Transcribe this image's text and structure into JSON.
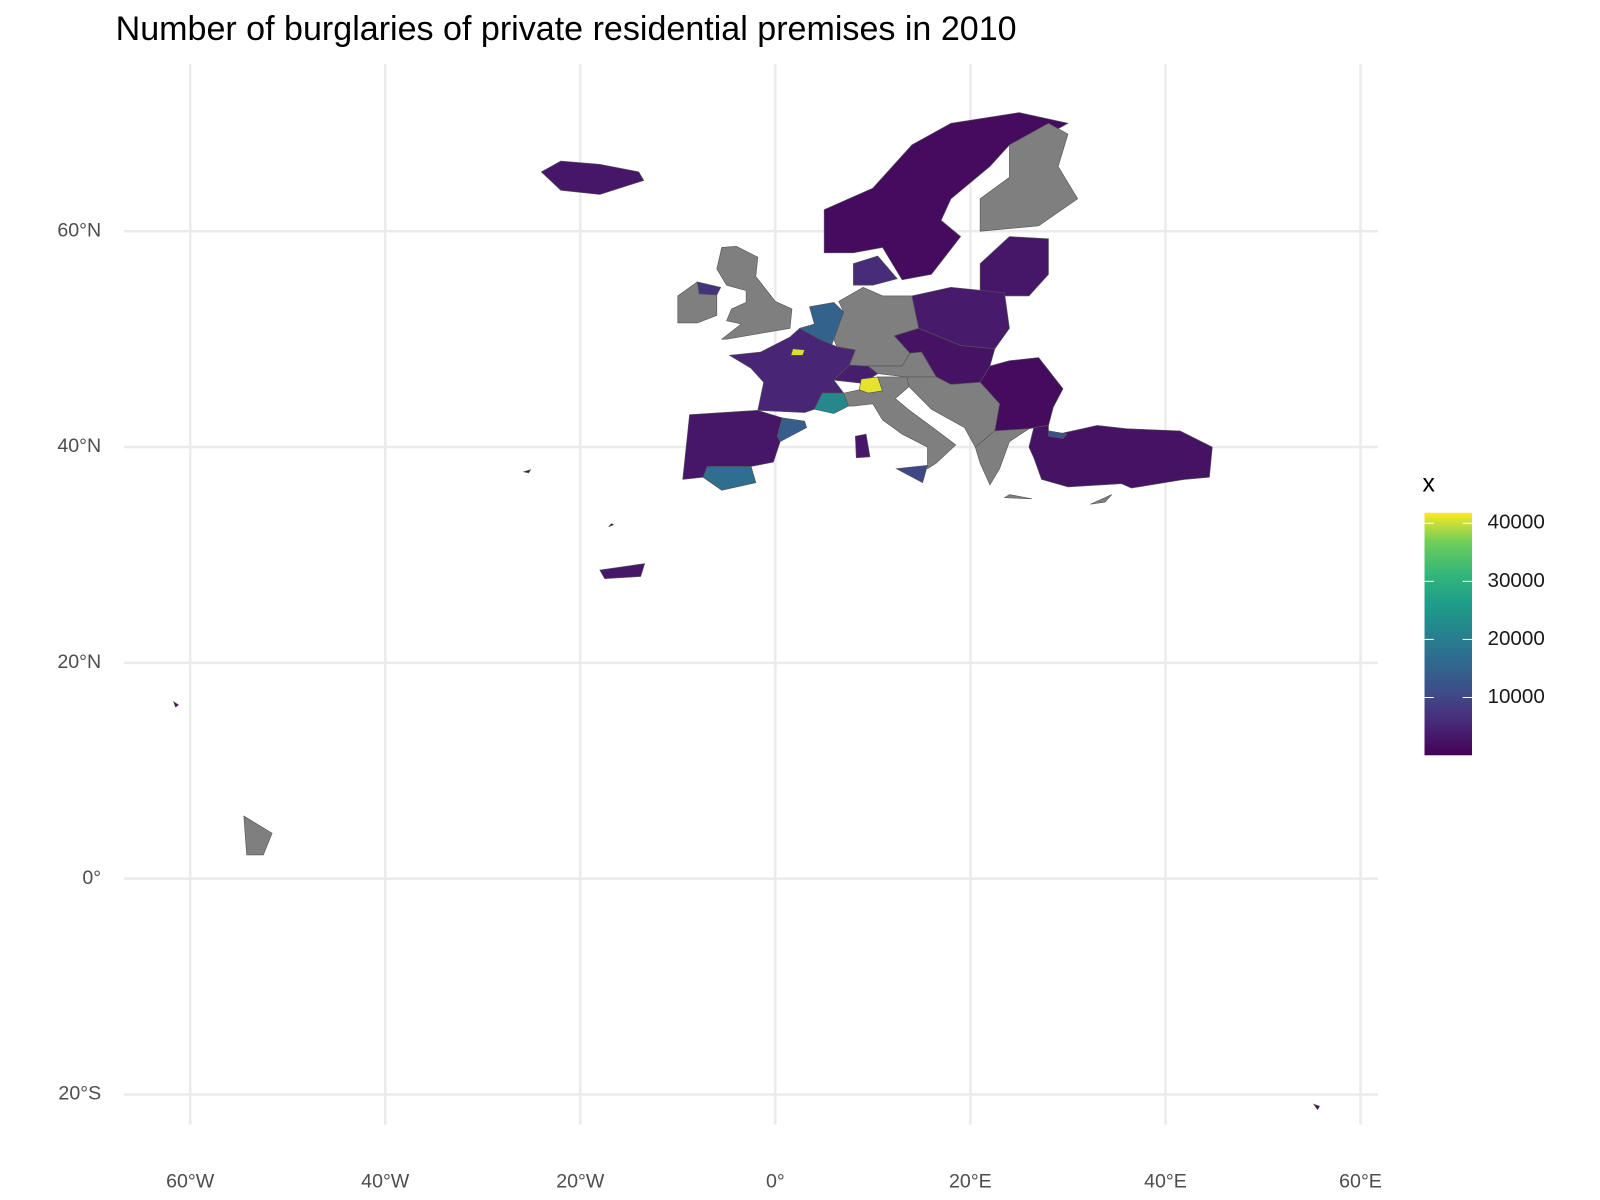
{
  "chart_data": {
    "type": "choropleth",
    "title": "Number of burglaries of private residential premises in 2010",
    "xlim": [
      -66.8,
      61.8
    ],
    "ylim": [
      -22.8,
      75.5
    ],
    "xticks": [
      {
        "value": -60,
        "label": "60°W"
      },
      {
        "value": -40,
        "label": "40°W"
      },
      {
        "value": -20,
        "label": "20°W"
      },
      {
        "value": 0,
        "label": "0°"
      },
      {
        "value": 20,
        "label": "20°E"
      },
      {
        "value": 40,
        "label": "40°E"
      },
      {
        "value": 60,
        "label": "60°E"
      }
    ],
    "yticks": [
      {
        "value": -20,
        "label": "20°S"
      },
      {
        "value": 0,
        "label": "0°"
      },
      {
        "value": 20,
        "label": "20°N"
      },
      {
        "value": 40,
        "label": "40°N"
      },
      {
        "value": 60,
        "label": "60°N"
      }
    ],
    "grid": true,
    "legend_title": "x",
    "palette": "viridis",
    "na_color": "#7f7f7f",
    "color_lim": [
      50,
      41800
    ],
    "color_ticks": [
      10000,
      20000,
      30000,
      40000
    ],
    "values": [
      3000,
      1500,
      null,
      3000,
      6000,
      null,
      null,
      7000,
      15000,
      null,
      3500,
      2500,
      null,
      1500,
      5000,
      40500,
      22000,
      4000,
      41000,
      null,
      10000,
      3000,
      null,
      null,
      null,
      3000,
      17000,
      14000,
      2500,
      12000,
      null,
      null,
      1000,
      3000,
      1000,
      1000,
      1000
    ]
  }
}
